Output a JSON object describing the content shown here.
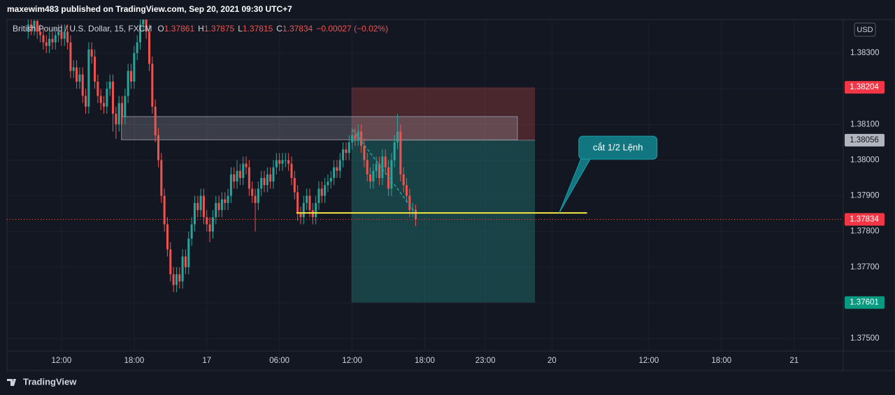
{
  "header": {
    "publisher": "maxewim483 published on TradingView.com, Sep 20, 2021 09:30 UTC+7"
  },
  "footer": {
    "brand": "TradingView"
  },
  "chart_data": {
    "type": "candlestick",
    "symbol": "British Pound / U.S. Dollar, 15, FXCM",
    "legend": [
      {
        "label": "O",
        "value": 1.37861
      },
      {
        "label": "H",
        "value": 1.37875
      },
      {
        "label": "L",
        "value": 1.37815
      },
      {
        "label": "C",
        "value": 1.37834
      }
    ],
    "change": "−0.00027 (−0.02%)",
    "currency": "USD",
    "up_color": "#26a69a",
    "down_color": "#ef5350",
    "x": [
      9.25,
      9.5,
      9.75,
      10,
      10.25,
      10.5,
      10.75,
      11,
      11.25,
      11.5,
      11.75,
      12,
      12.25,
      12.5,
      12.75,
      13,
      13.25,
      13.5,
      13.75,
      14,
      14.25,
      14.5,
      14.75,
      15,
      15.25,
      15.5,
      15.75,
      16,
      16.25,
      16.5,
      16.75,
      17,
      17.25,
      17.5,
      17.75,
      18,
      18.25,
      18.5,
      18.75,
      19,
      19.25,
      19.5,
      19.75,
      20,
      20.25,
      20.5,
      20.75,
      21,
      21.25,
      21.5,
      21.75,
      22,
      22.25,
      22.5,
      22.75,
      23,
      23.25,
      23.5,
      23.75,
      24,
      24.25,
      24.5,
      24.75,
      25,
      25.25,
      25.5,
      25.75,
      26,
      26.25,
      26.5,
      26.75,
      27,
      27.25,
      27.5,
      27.75,
      28,
      28.25,
      28.5,
      28.75,
      29,
      29.25,
      29.5,
      29.75,
      30,
      30.25,
      30.5,
      30.75,
      31,
      31.25,
      31.5,
      31.75,
      32,
      32.25,
      32.5,
      32.75,
      33,
      33.25,
      33.5,
      33.75,
      34,
      34.25,
      34.5,
      34.75,
      35,
      35.25,
      35.5,
      35.75,
      36,
      36.25,
      36.5,
      36.75,
      37,
      37.25,
      37.5,
      37.75,
      38,
      38.25,
      38.5,
      38.75,
      39,
      39.25,
      39.5,
      39.75,
      40,
      40.25,
      40.5,
      40.75,
      41,
      41.25
    ],
    "open": [
      1.3836,
      1.3838,
      1.3837,
      1.3839,
      1.3836,
      1.3835,
      1.3833,
      1.3832,
      1.3834,
      1.3833,
      1.3835,
      1.3836,
      1.3834,
      1.3836,
      1.3833,
      1.3825,
      1.3826,
      1.3822,
      1.3824,
      1.3818,
      1.3815,
      1.3831,
      1.3829,
      1.3822,
      1.3818,
      1.3816,
      1.3815,
      1.382,
      1.3822,
      1.3813,
      1.381,
      1.3816,
      1.3812,
      1.3818,
      1.3825,
      1.3822,
      1.383,
      1.3833,
      1.3838,
      1.384,
      1.3836,
      1.3827,
      1.3815,
      1.3807,
      1.38,
      1.379,
      1.3782,
      1.3775,
      1.3768,
      1.3765,
      1.3768,
      1.3766,
      1.3773,
      1.377,
      1.3778,
      1.3782,
      1.3788,
      1.3786,
      1.379,
      1.3784,
      1.3782,
      1.378,
      1.3784,
      1.3788,
      1.3786,
      1.3789,
      1.3788,
      1.379,
      1.3796,
      1.3794,
      1.3797,
      1.3795,
      1.3799,
      1.3798,
      1.3792,
      1.379,
      1.3788,
      1.3792,
      1.3795,
      1.3793,
      1.3796,
      1.3794,
      1.3798,
      1.38,
      1.3799,
      1.38,
      1.38,
      1.3799,
      1.3795,
      1.3791,
      1.3785,
      1.3784,
      1.3788,
      1.379,
      1.3786,
      1.3784,
      1.3788,
      1.3792,
      1.379,
      1.3793,
      1.3794,
      1.3795,
      1.3798,
      1.3797,
      1.38,
      1.3803,
      1.3802,
      1.3805,
      1.3807,
      1.3806,
      1.3808,
      1.3804,
      1.38,
      1.3796,
      1.3794,
      1.3797,
      1.3799,
      1.3795,
      1.3801,
      1.3798,
      1.3792,
      1.38,
      1.3805,
      1.3808,
      1.3796,
      1.3793,
      1.379,
      1.3786,
      1.37861
    ],
    "high": [
      1.384,
      1.384,
      1.3841,
      1.3841,
      1.3838,
      1.3837,
      1.3835,
      1.3836,
      1.3836,
      1.3837,
      1.3838,
      1.3838,
      1.3838,
      1.3838,
      1.3835,
      1.3828,
      1.3828,
      1.3826,
      1.3826,
      1.382,
      1.3833,
      1.3833,
      1.3831,
      1.3824,
      1.382,
      1.3818,
      1.3822,
      1.3824,
      1.3824,
      1.3815,
      1.3818,
      1.3818,
      1.382,
      1.3827,
      1.3827,
      1.3832,
      1.3835,
      1.384,
      1.3842,
      1.3842,
      1.3838,
      1.3829,
      1.3817,
      1.3809,
      1.3802,
      1.3792,
      1.3784,
      1.3777,
      1.377,
      1.377,
      1.377,
      1.3775,
      1.3775,
      1.378,
      1.3784,
      1.379,
      1.379,
      1.3792,
      1.3792,
      1.3786,
      1.3784,
      1.3786,
      1.379,
      1.379,
      1.3791,
      1.3791,
      1.3792,
      1.3798,
      1.3798,
      1.38,
      1.3799,
      1.3801,
      1.3801,
      1.38,
      1.3794,
      1.3792,
      1.3794,
      1.3797,
      1.3797,
      1.3798,
      1.3798,
      1.38,
      1.3802,
      1.3802,
      1.3802,
      1.3802,
      1.3802,
      1.3801,
      1.3797,
      1.3793,
      1.3787,
      1.379,
      1.3792,
      1.3792,
      1.3788,
      1.379,
      1.3794,
      1.3794,
      1.3795,
      1.3796,
      1.3797,
      1.38,
      1.38,
      1.3802,
      1.3805,
      1.3805,
      1.3807,
      1.3809,
      1.3809,
      1.381,
      1.381,
      1.3806,
      1.3802,
      1.3798,
      1.3799,
      1.3801,
      1.3801,
      1.3803,
      1.3803,
      1.38,
      1.3802,
      1.3807,
      1.3813,
      1.381,
      1.3798,
      1.3795,
      1.3792,
      1.3788,
      1.37875
    ],
    "low": [
      1.3834,
      1.3835,
      1.3835,
      1.3834,
      1.3833,
      1.3831,
      1.383,
      1.383,
      1.3831,
      1.3831,
      1.3833,
      1.3832,
      1.3832,
      1.3831,
      1.3823,
      1.3823,
      1.382,
      1.382,
      1.3816,
      1.3813,
      1.3813,
      1.3827,
      1.382,
      1.3816,
      1.3814,
      1.3813,
      1.3813,
      1.3818,
      1.3808,
      1.3806,
      1.3808,
      1.381,
      1.381,
      1.3816,
      1.382,
      1.382,
      1.3828,
      1.3831,
      1.3836,
      1.3834,
      1.3825,
      1.3813,
      1.3805,
      1.3798,
      1.3788,
      1.378,
      1.3773,
      1.3766,
      1.3763,
      1.3763,
      1.3764,
      1.3764,
      1.3768,
      1.3768,
      1.3776,
      1.378,
      1.3784,
      1.3784,
      1.3782,
      1.378,
      1.3777,
      1.3778,
      1.3782,
      1.3784,
      1.3784,
      1.3786,
      1.3786,
      1.3788,
      1.3792,
      1.3792,
      1.3793,
      1.3793,
      1.3796,
      1.379,
      1.3788,
      1.378,
      1.3786,
      1.379,
      1.3791,
      1.3791,
      1.3792,
      1.3792,
      1.3796,
      1.3797,
      1.3797,
      1.3798,
      1.3797,
      1.3793,
      1.3789,
      1.3783,
      1.3782,
      1.3782,
      1.3786,
      1.3784,
      1.3782,
      1.3782,
      1.3786,
      1.3788,
      1.3788,
      1.3791,
      1.3792,
      1.3793,
      1.3795,
      1.3795,
      1.3798,
      1.38,
      1.38,
      1.3803,
      1.3804,
      1.3804,
      1.3802,
      1.3798,
      1.3794,
      1.3792,
      1.3792,
      1.3795,
      1.3793,
      1.3793,
      1.3796,
      1.379,
      1.379,
      1.3798,
      1.3803,
      1.3794,
      1.3791,
      1.3788,
      1.3784,
      1.3784,
      1.37815
    ],
    "close": [
      1.3838,
      1.3837,
      1.3839,
      1.3836,
      1.3835,
      1.3833,
      1.3832,
      1.3834,
      1.3833,
      1.3835,
      1.3836,
      1.3834,
      1.3836,
      1.3833,
      1.3825,
      1.3826,
      1.3822,
      1.3824,
      1.3818,
      1.3815,
      1.3831,
      1.3829,
      1.3822,
      1.3818,
      1.3816,
      1.3815,
      1.382,
      1.3822,
      1.3813,
      1.381,
      1.3816,
      1.3812,
      1.3818,
      1.3825,
      1.3822,
      1.383,
      1.3833,
      1.3838,
      1.384,
      1.3836,
      1.3827,
      1.3815,
      1.3807,
      1.38,
      1.379,
      1.3782,
      1.3775,
      1.3768,
      1.3765,
      1.3768,
      1.3766,
      1.3773,
      1.377,
      1.3778,
      1.3782,
      1.3788,
      1.3786,
      1.379,
      1.3784,
      1.3782,
      1.378,
      1.3784,
      1.3788,
      1.3786,
      1.3789,
      1.3788,
      1.379,
      1.3796,
      1.3794,
      1.3797,
      1.3795,
      1.3799,
      1.3798,
      1.3792,
      1.379,
      1.3788,
      1.3792,
      1.3795,
      1.3793,
      1.3796,
      1.3794,
      1.3798,
      1.38,
      1.3799,
      1.38,
      1.38,
      1.3799,
      1.3795,
      1.3791,
      1.3785,
      1.3784,
      1.3788,
      1.379,
      1.3786,
      1.3784,
      1.3788,
      1.3792,
      1.379,
      1.3793,
      1.3794,
      1.3795,
      1.3798,
      1.3797,
      1.38,
      1.3803,
      1.3802,
      1.3805,
      1.3807,
      1.3806,
      1.3808,
      1.3804,
      1.38,
      1.3796,
      1.3794,
      1.3797,
      1.3799,
      1.3795,
      1.3801,
      1.3798,
      1.3792,
      1.38,
      1.3805,
      1.3808,
      1.3796,
      1.3793,
      1.379,
      1.3786,
      1.37861,
      1.37834
    ],
    "xlim": [
      7.5,
      76.5
    ],
    "ylim": [
      1.37465,
      1.38394
    ],
    "xticks": [
      {
        "value": 12,
        "label": "12:00"
      },
      {
        "value": 18,
        "label": "18:00"
      },
      {
        "value": 24,
        "label": "17"
      },
      {
        "value": 30,
        "label": "06:00"
      },
      {
        "value": 36,
        "label": "12:00"
      },
      {
        "value": 42,
        "label": "18:00"
      },
      {
        "value": 47,
        "label": "23:00"
      },
      {
        "value": 52.5,
        "label": "20"
      },
      {
        "value": 60.5,
        "label": "12:00"
      },
      {
        "value": 66.5,
        "label": "18:00"
      },
      {
        "value": 72.5,
        "label": "21"
      }
    ],
    "yticks": [
      {
        "value": 1.383,
        "label": "1.38300"
      },
      {
        "value": 1.382,
        "label": "1.38200"
      },
      {
        "value": 1.381,
        "label": "1.38100"
      },
      {
        "value": 1.38,
        "label": "1.38000"
      },
      {
        "value": 1.379,
        "label": "1.37900"
      },
      {
        "value": 1.378,
        "label": "1.37800"
      },
      {
        "value": 1.377,
        "label": "1.37700"
      },
      {
        "value": 1.376,
        "label": "1.37600"
      },
      {
        "value": 1.375,
        "label": "1.37500"
      }
    ],
    "last_price": {
      "value": 1.37834,
      "label": "1.37834"
    },
    "drawings": {
      "zone": {
        "x": [
          16.95,
          49.65
        ],
        "y": [
          1.38057,
          1.38122
        ]
      },
      "position": {
        "x": [
          35.95,
          51.1
        ],
        "stop": {
          "value": 1.38204,
          "label": "1.38204"
        },
        "entry": {
          "value": 1.38056,
          "label": "1.38056"
        },
        "target": {
          "value": 1.37601,
          "label": "1.37601"
        }
      },
      "level": {
        "x": [
          31.4,
          55.4
        ],
        "value": 1.37852
      },
      "trend": {
        "x": [
          36.05,
          41.25
        ],
        "y": [
          1.38085,
          1.37852
        ]
      },
      "callout": {
        "text": "cắt 1/2 Lệnh",
        "x": 53.1,
        "y": 1.37852
      }
    }
  }
}
